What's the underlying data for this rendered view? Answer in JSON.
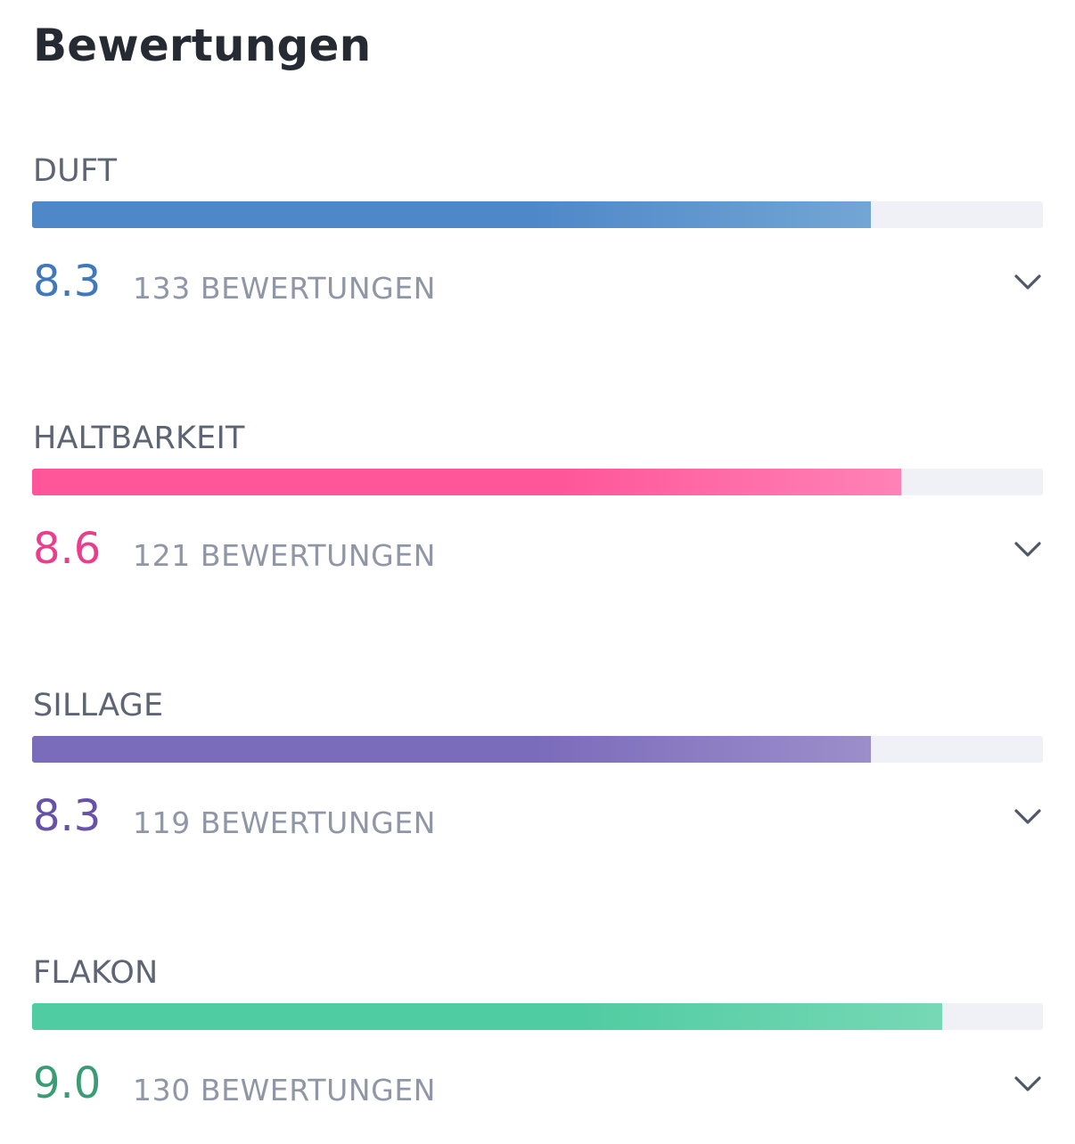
{
  "title": "Bewertungen",
  "ratings": [
    {
      "label": "DUFT",
      "score": "8.3",
      "count": "133 BEWERTUNGEN",
      "fill_fraction": 0.83,
      "color": "#4f88c9",
      "color_end": "#73a6d4",
      "score_color": "#3f79bb",
      "icon": "chevron-down-icon"
    },
    {
      "label": "HALTBARKEIT",
      "score": "8.6",
      "count": "121 BEWERTUNGEN",
      "fill_fraction": 0.86,
      "color": "#ff5599",
      "color_end": "#ff82b6",
      "score_color": "#ea3d8c",
      "icon": "chevron-down-icon"
    },
    {
      "label": "SILLAGE",
      "score": "8.3",
      "count": "119 BEWERTUNGEN",
      "fill_fraction": 0.83,
      "color": "#7b6bbb",
      "color_end": "#9c8ecb",
      "score_color": "#6752aa",
      "icon": "chevron-down-icon"
    },
    {
      "label": "FLAKON",
      "score": "9.0",
      "count": "130 BEWERTUNGEN",
      "fill_fraction": 0.9,
      "color": "#50cca2",
      "color_end": "#77d8b6",
      "score_color": "#3a9c75",
      "icon": "chevron-down-icon"
    }
  ]
}
